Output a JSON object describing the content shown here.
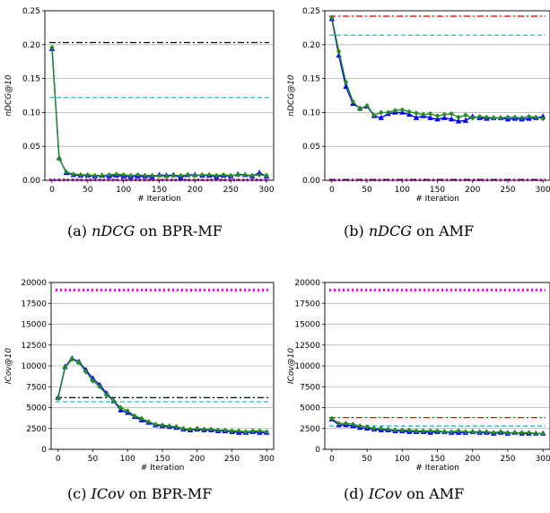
{
  "chart_data": [
    {
      "type": "line",
      "ylabel": "nDCG@10",
      "xlabel": "# Iteration",
      "xlim": [
        -10,
        310
      ],
      "ylim": [
        0,
        0.25
      ],
      "xticks": [
        0,
        50,
        100,
        150,
        200,
        250,
        300
      ],
      "xtick_labels": [
        "0",
        "50",
        "100",
        "150",
        "200",
        "250",
        "300"
      ],
      "yticks": [
        0,
        0.05,
        0.1,
        0.15,
        0.2,
        0.25
      ],
      "ytick_labels": [
        "0.00",
        "0.05",
        "0.10",
        "0.15",
        "0.20",
        "0.25"
      ],
      "grid": "horizontal",
      "reference_lines": [
        {
          "style": "dashdot",
          "color": "#000000",
          "y": 0.203
        },
        {
          "style": "dashed",
          "color": "#17becf",
          "y": 0.122
        },
        {
          "style": "dashed",
          "color": "#9467bd",
          "y": 0.001
        },
        {
          "style": "dotted",
          "color": "#ff00ff",
          "y": 0.0005
        }
      ],
      "series": [
        {
          "color": "#0000ff",
          "marker": "triangle",
          "x": [
            0,
            10,
            20,
            30,
            40,
            50,
            60,
            70,
            80,
            90,
            100,
            110,
            120,
            130,
            140,
            150,
            160,
            170,
            180,
            190,
            200,
            210,
            220,
            230,
            240,
            250,
            260,
            270,
            280,
            290,
            300
          ],
          "y": [
            0.194,
            0.033,
            0.011,
            0.008,
            0.007,
            0.007,
            0.006,
            0.007,
            0.006,
            0.007,
            0.006,
            0.005,
            0.006,
            0.006,
            0.005,
            0.008,
            0.007,
            0.008,
            0.004,
            0.008,
            0.008,
            0.007,
            0.007,
            0.005,
            0.007,
            0.006,
            0.009,
            0.008,
            0.006,
            0.011,
            0.006
          ]
        },
        {
          "color": "#228b22",
          "marker": "diamond",
          "x": [
            0,
            10,
            20,
            30,
            40,
            50,
            60,
            70,
            80,
            90,
            100,
            110,
            120,
            130,
            140,
            150,
            160,
            170,
            180,
            190,
            200,
            210,
            220,
            230,
            240,
            250,
            260,
            270,
            280,
            290,
            300
          ],
          "y": [
            0.196,
            0.032,
            0.012,
            0.009,
            0.008,
            0.008,
            0.007,
            0.007,
            0.008,
            0.009,
            0.008,
            0.007,
            0.008,
            0.007,
            0.007,
            0.007,
            0.006,
            0.007,
            0.007,
            0.008,
            0.007,
            0.008,
            0.008,
            0.007,
            0.008,
            0.007,
            0.008,
            0.008,
            0.007,
            0.008,
            0.007
          ]
        }
      ]
    },
    {
      "type": "line",
      "ylabel": "nDCG@10",
      "xlabel": "# Iteration",
      "xlim": [
        -10,
        310
      ],
      "ylim": [
        0,
        0.25
      ],
      "xticks": [
        0,
        50,
        100,
        150,
        200,
        250,
        300
      ],
      "xtick_labels": [
        "0",
        "50",
        "100",
        "150",
        "200",
        "250",
        "300"
      ],
      "yticks": [
        0,
        0.05,
        0.1,
        0.15,
        0.2,
        0.25
      ],
      "ytick_labels": [
        "0.00",
        "0.05",
        "0.10",
        "0.15",
        "0.20",
        "0.25"
      ],
      "grid": "horizontal",
      "reference_lines": [
        {
          "style": "dashdot",
          "color": "#ff0000",
          "y": 0.242
        },
        {
          "style": "dashed",
          "color": "#17becf",
          "y": 0.214
        },
        {
          "style": "dashdot",
          "color": "#000000",
          "y": 0.001
        },
        {
          "style": "dotted",
          "color": "#ff00ff",
          "y": 0.0005
        }
      ],
      "series": [
        {
          "color": "#0000ff",
          "marker": "triangle",
          "x": [
            0,
            10,
            20,
            30,
            40,
            50,
            60,
            70,
            80,
            90,
            100,
            110,
            120,
            130,
            140,
            150,
            160,
            170,
            180,
            190,
            200,
            210,
            220,
            230,
            240,
            250,
            260,
            270,
            280,
            290,
            300
          ],
          "y": [
            0.238,
            0.184,
            0.138,
            0.113,
            0.106,
            0.109,
            0.095,
            0.092,
            0.098,
            0.1,
            0.1,
            0.097,
            0.092,
            0.095,
            0.092,
            0.09,
            0.092,
            0.09,
            0.087,
            0.088,
            0.094,
            0.092,
            0.091,
            0.092,
            0.092,
            0.09,
            0.091,
            0.09,
            0.091,
            0.092,
            0.094
          ]
        },
        {
          "color": "#228b22",
          "marker": "diamond",
          "x": [
            0,
            10,
            20,
            30,
            40,
            50,
            60,
            70,
            80,
            90,
            100,
            110,
            120,
            130,
            140,
            150,
            160,
            170,
            180,
            190,
            200,
            210,
            220,
            230,
            240,
            250,
            260,
            270,
            280,
            290,
            300
          ],
          "y": [
            0.24,
            0.19,
            0.145,
            0.116,
            0.105,
            0.11,
            0.096,
            0.1,
            0.1,
            0.103,
            0.104,
            0.101,
            0.099,
            0.097,
            0.098,
            0.095,
            0.097,
            0.098,
            0.093,
            0.096,
            0.092,
            0.094,
            0.093,
            0.092,
            0.092,
            0.093,
            0.093,
            0.092,
            0.094,
            0.093,
            0.091
          ]
        }
      ]
    },
    {
      "type": "line",
      "ylabel": "ICov@10",
      "xlabel": "# Iteration",
      "xlim": [
        -10,
        310
      ],
      "ylim": [
        0,
        20000
      ],
      "xticks": [
        0,
        50,
        100,
        150,
        200,
        250,
        300
      ],
      "xtick_labels": [
        "0",
        "50",
        "100",
        "150",
        "200",
        "250",
        "300"
      ],
      "yticks": [
        0,
        2500,
        5000,
        7500,
        10000,
        12500,
        15000,
        17500,
        20000
      ],
      "ytick_labels": [
        "0",
        "2500",
        "5000",
        "7500",
        "10000",
        "12500",
        "15000",
        "17500",
        "20000"
      ],
      "grid": "horizontal",
      "reference_lines": [
        {
          "style": "dotted",
          "color": "#ff00ff",
          "y": 19100
        },
        {
          "style": "dashdot",
          "color": "#000000",
          "y": 6200
        },
        {
          "style": "dashed",
          "color": "#17becf",
          "y": 5700
        }
      ],
      "series": [
        {
          "color": "#0000ff",
          "marker": "triangle",
          "x": [
            0,
            10,
            20,
            30,
            40,
            50,
            60,
            70,
            80,
            90,
            100,
            110,
            120,
            130,
            140,
            150,
            160,
            170,
            180,
            190,
            200,
            210,
            220,
            230,
            240,
            250,
            260,
            270,
            280,
            290,
            300
          ],
          "y": [
            6200,
            9900,
            10900,
            10500,
            9500,
            8500,
            7700,
            6700,
            5800,
            4700,
            4400,
            3900,
            3500,
            3200,
            2900,
            2800,
            2700,
            2600,
            2400,
            2300,
            2400,
            2300,
            2300,
            2200,
            2200,
            2100,
            2000,
            2000,
            2100,
            2000,
            2000
          ]
        },
        {
          "color": "#228b22",
          "marker": "diamond",
          "x": [
            0,
            10,
            20,
            30,
            40,
            50,
            60,
            70,
            80,
            90,
            100,
            110,
            120,
            130,
            140,
            150,
            160,
            170,
            180,
            190,
            200,
            210,
            220,
            230,
            240,
            250,
            260,
            270,
            280,
            290,
            300
          ],
          "y": [
            6100,
            9800,
            10800,
            10400,
            9300,
            8200,
            7500,
            6500,
            5800,
            5000,
            4600,
            4000,
            3700,
            3300,
            3000,
            2900,
            2800,
            2700,
            2500,
            2400,
            2500,
            2400,
            2400,
            2300,
            2300,
            2200,
            2200,
            2100,
            2200,
            2200,
            2100
          ]
        }
      ]
    },
    {
      "type": "line",
      "ylabel": "ICov@10",
      "xlabel": "# Iteration",
      "xlim": [
        -10,
        310
      ],
      "ylim": [
        0,
        20000
      ],
      "xticks": [
        0,
        50,
        100,
        150,
        200,
        250,
        300
      ],
      "xtick_labels": [
        "0",
        "50",
        "100",
        "150",
        "200",
        "250",
        "300"
      ],
      "yticks": [
        0,
        2500,
        5000,
        7500,
        10000,
        12500,
        15000,
        17500,
        20000
      ],
      "ytick_labels": [
        "0",
        "2500",
        "5000",
        "7500",
        "10000",
        "12500",
        "15000",
        "17500",
        "20000"
      ],
      "grid": "horizontal",
      "reference_lines": [
        {
          "style": "dotted",
          "color": "#ff00ff",
          "y": 19100
        },
        {
          "style": "dashdot",
          "color": "#ff0000",
          "y": 3800
        },
        {
          "style": "dashed",
          "color": "#17becf",
          "y": 2800
        }
      ],
      "series": [
        {
          "color": "#0000ff",
          "marker": "triangle",
          "x": [
            0,
            10,
            20,
            30,
            40,
            50,
            60,
            70,
            80,
            90,
            100,
            110,
            120,
            130,
            140,
            150,
            160,
            170,
            180,
            190,
            200,
            210,
            220,
            230,
            240,
            250,
            260,
            270,
            280,
            290,
            300
          ],
          "y": [
            3600,
            2900,
            2900,
            2800,
            2600,
            2500,
            2400,
            2300,
            2300,
            2200,
            2200,
            2100,
            2100,
            2100,
            2000,
            2100,
            2100,
            2000,
            2000,
            2000,
            2100,
            2000,
            2000,
            1900,
            2000,
            1900,
            2000,
            1900,
            1900,
            1900,
            1900
          ]
        },
        {
          "color": "#228b22",
          "marker": "diamond",
          "x": [
            0,
            10,
            20,
            30,
            40,
            50,
            60,
            70,
            80,
            90,
            100,
            110,
            120,
            130,
            140,
            150,
            160,
            170,
            180,
            190,
            200,
            210,
            220,
            230,
            240,
            250,
            260,
            270,
            280,
            290,
            300
          ],
          "y": [
            3700,
            3100,
            3100,
            3000,
            2800,
            2700,
            2500,
            2500,
            2400,
            2300,
            2300,
            2300,
            2200,
            2200,
            2200,
            2200,
            2100,
            2100,
            2200,
            2100,
            2100,
            2100,
            2100,
            2000,
            2100,
            2000,
            2000,
            2000,
            2000,
            1900,
            1900
          ]
        }
      ]
    }
  ],
  "captions": [
    {
      "prefix": "(a) ",
      "metric": "nDCG",
      "suffix": " on BPR-MF"
    },
    {
      "prefix": "(b) ",
      "metric": "nDCG",
      "suffix": " on AMF"
    },
    {
      "prefix": "(c) ",
      "metric": "ICov",
      "suffix": " on BPR-MF"
    },
    {
      "prefix": "(d) ",
      "metric": "ICov",
      "suffix": " on AMF"
    }
  ]
}
